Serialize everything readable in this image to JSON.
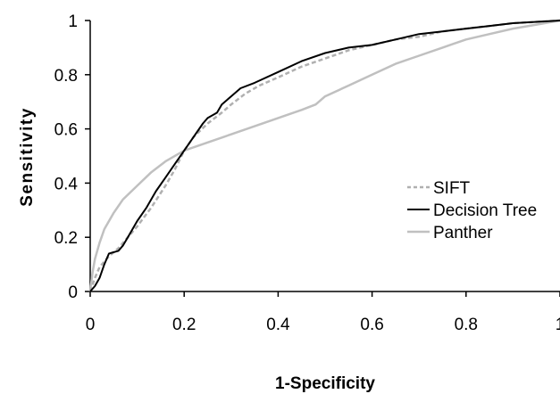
{
  "chart_data": {
    "type": "line",
    "title": "",
    "xlabel": "1-Specificity",
    "ylabel": "Sensitivity",
    "xlim": [
      0,
      1
    ],
    "ylim": [
      0,
      1
    ],
    "x_ticks": [
      "0",
      "0.2",
      "0.4",
      "0.6",
      "0.8",
      "1"
    ],
    "y_ticks": [
      "0",
      "0.2",
      "0.4",
      "0.6",
      "0.8",
      "1"
    ],
    "grid": false,
    "legend_position": "right",
    "series": [
      {
        "name": "SIFT",
        "color": "#b0b0b0",
        "style": "dashed",
        "x": [
          0,
          0.01,
          0.02,
          0.04,
          0.06,
          0.08,
          0.1,
          0.13,
          0.16,
          0.18,
          0.2,
          0.22,
          0.25,
          0.28,
          0.3,
          0.33,
          0.36,
          0.4,
          0.45,
          0.5,
          0.55,
          0.6,
          0.65,
          0.7,
          0.75,
          0.8,
          0.85,
          0.9,
          0.95,
          1
        ],
        "y": [
          0,
          0.05,
          0.09,
          0.13,
          0.16,
          0.2,
          0.24,
          0.31,
          0.39,
          0.45,
          0.52,
          0.57,
          0.62,
          0.66,
          0.69,
          0.73,
          0.76,
          0.79,
          0.83,
          0.86,
          0.89,
          0.91,
          0.93,
          0.94,
          0.96,
          0.97,
          0.98,
          0.99,
          0.995,
          1
        ]
      },
      {
        "name": "Decision Tree",
        "color": "#000000",
        "style": "solid",
        "x": [
          0,
          0.01,
          0.02,
          0.03,
          0.04,
          0.06,
          0.07,
          0.08,
          0.1,
          0.12,
          0.14,
          0.16,
          0.18,
          0.2,
          0.22,
          0.24,
          0.25,
          0.27,
          0.28,
          0.3,
          0.32,
          0.35,
          0.4,
          0.45,
          0.5,
          0.55,
          0.6,
          0.65,
          0.7,
          0.75,
          0.8,
          0.85,
          0.9,
          0.95,
          1
        ],
        "y": [
          0,
          0.02,
          0.05,
          0.1,
          0.14,
          0.15,
          0.17,
          0.2,
          0.26,
          0.31,
          0.37,
          0.42,
          0.47,
          0.52,
          0.57,
          0.62,
          0.64,
          0.66,
          0.69,
          0.72,
          0.75,
          0.77,
          0.81,
          0.85,
          0.88,
          0.9,
          0.91,
          0.93,
          0.95,
          0.96,
          0.97,
          0.98,
          0.99,
          0.995,
          1
        ]
      },
      {
        "name": "Panther",
        "color": "#c0c0c0",
        "style": "solid",
        "x": [
          0,
          0.005,
          0.01,
          0.02,
          0.03,
          0.05,
          0.07,
          0.1,
          0.13,
          0.16,
          0.2,
          0.25,
          0.3,
          0.35,
          0.4,
          0.45,
          0.48,
          0.5,
          0.55,
          0.6,
          0.65,
          0.7,
          0.75,
          0.8,
          0.85,
          0.9,
          0.95,
          1
        ],
        "y": [
          0,
          0.07,
          0.12,
          0.18,
          0.23,
          0.29,
          0.34,
          0.39,
          0.44,
          0.48,
          0.52,
          0.55,
          0.58,
          0.61,
          0.64,
          0.67,
          0.69,
          0.72,
          0.76,
          0.8,
          0.84,
          0.87,
          0.9,
          0.93,
          0.95,
          0.97,
          0.985,
          1
        ]
      }
    ]
  }
}
